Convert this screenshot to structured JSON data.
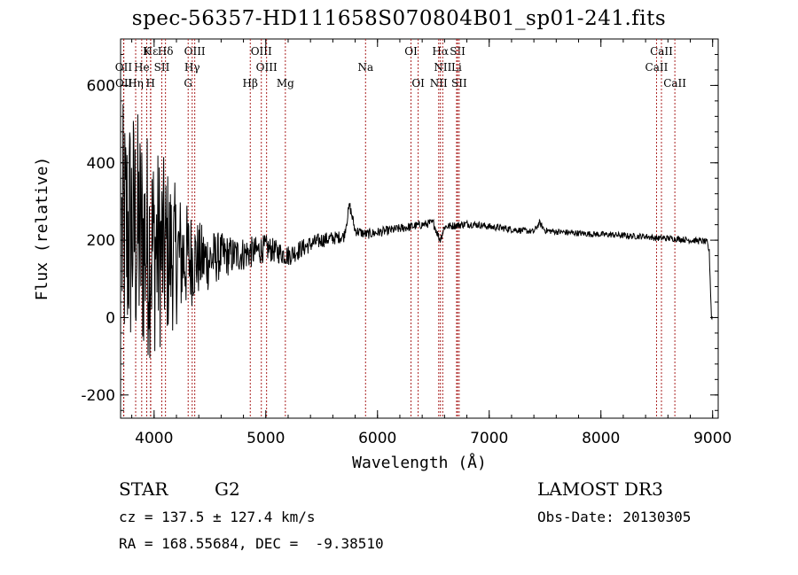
{
  "chart_data": {
    "type": "line",
    "title": "spec-56357-HD111658S070804B01_sp01-241.fits",
    "xlabel": "Wavelength (Å)",
    "ylabel": "Flux (relative)",
    "xlim": [
      3700,
      9050
    ],
    "ylim": [
      -260,
      720
    ],
    "xticks": [
      4000,
      5000,
      6000,
      7000,
      8000,
      9000
    ],
    "yticks": [
      -200,
      0,
      200,
      400,
      600
    ],
    "grid": false,
    "series": [
      {
        "name": "flux",
        "x": [
          3700,
          3800,
          3900,
          4000,
          4100,
          4200,
          4300,
          4400,
          4500,
          4600,
          4700,
          4800,
          4900,
          5000,
          5100,
          5200,
          5300,
          5400,
          5500,
          5600,
          5700,
          5750,
          5800,
          5900,
          6000,
          6100,
          6200,
          6300,
          6400,
          6500,
          6560,
          6600,
          6700,
          6800,
          6900,
          7000,
          7100,
          7200,
          7300,
          7400,
          7450,
          7500,
          7600,
          7700,
          7800,
          7900,
          8000,
          8100,
          8200,
          8300,
          8400,
          8500,
          8600,
          8700,
          8800,
          8900,
          8950,
          8970,
          8990,
          9000
        ],
        "values": [
          200,
          230,
          200,
          180,
          170,
          160,
          155,
          150,
          150,
          160,
          160,
          165,
          170,
          180,
          170,
          160,
          175,
          190,
          200,
          205,
          210,
          290,
          225,
          215,
          220,
          225,
          230,
          235,
          240,
          245,
          200,
          235,
          238,
          242,
          240,
          235,
          232,
          228,
          225,
          222,
          245,
          225,
          222,
          220,
          218,
          216,
          215,
          214,
          212,
          210,
          210,
          205,
          205,
          203,
          200,
          198,
          195,
          170,
          0,
          0
        ],
        "noise": [
          350,
          340,
          320,
          280,
          240,
          180,
          140,
          100,
          80,
          60,
          50,
          45,
          40,
          35,
          30,
          28,
          25,
          22,
          20,
          18,
          15,
          15,
          14,
          13,
          13,
          12,
          12,
          12,
          11,
          11,
          11,
          10,
          10,
          10,
          9,
          9,
          9,
          9,
          8,
          8,
          8,
          8,
          8,
          8,
          8,
          8,
          8,
          8,
          8,
          8,
          8,
          8,
          8,
          8,
          8,
          8,
          8,
          8,
          8,
          8
        ]
      }
    ],
    "lines": [
      {
        "label": "Hε",
        "wave": 3970,
        "row": 0
      },
      {
        "label": "K",
        "wave": 3934,
        "row": 0
      },
      {
        "label": "Hδ",
        "wave": 4102,
        "row": 0
      },
      {
        "label": "OIII",
        "wave": 4364,
        "row": 0
      },
      {
        "label": "OIII",
        "wave": 4960,
        "row": 0
      },
      {
        "label": "OI",
        "wave": 6300,
        "row": 0
      },
      {
        "label": "Hα",
        "wave": 6563,
        "row": 0
      },
      {
        "label": "SII",
        "wave": 6717,
        "row": 0
      },
      {
        "label": "CaII",
        "wave": 8542,
        "row": 0
      },
      {
        "label": "OII",
        "wave": 3727,
        "row": 1
      },
      {
        "label": "He",
        "wave": 3889,
        "row": 1
      },
      {
        "label": "SII",
        "wave": 4069,
        "row": 1
      },
      {
        "label": "Hγ",
        "wave": 4341,
        "row": 1
      },
      {
        "label": "OIII",
        "wave": 5007,
        "row": 1
      },
      {
        "label": "Na",
        "wave": 5893,
        "row": 1
      },
      {
        "label": "NII",
        "wave": 6584,
        "row": 1
      },
      {
        "label": "Li",
        "wave": 6708,
        "row": 1
      },
      {
        "label": "CaII",
        "wave": 8498,
        "row": 1
      },
      {
        "label": "OII",
        "wave": 3729,
        "row": 2
      },
      {
        "label": "Hη",
        "wave": 3835,
        "row": 2
      },
      {
        "label": "H",
        "wave": 3968,
        "row": 2
      },
      {
        "label": "G",
        "wave": 4305,
        "row": 2
      },
      {
        "label": "Hβ",
        "wave": 4861,
        "row": 2
      },
      {
        "label": "Mg",
        "wave": 5175,
        "row": 2
      },
      {
        "label": "OI",
        "wave": 6364,
        "row": 2
      },
      {
        "label": "NII",
        "wave": 6548,
        "row": 2
      },
      {
        "label": "SII",
        "wave": 6731,
        "row": 2
      },
      {
        "label": "CaII",
        "wave": 8662,
        "row": 2
      }
    ],
    "line_color": "#aa2222"
  },
  "info": {
    "class": "STAR",
    "subclass": "G2",
    "survey": "LAMOST DR3",
    "cz": "cz = 137.5 ± 127.4 km/s",
    "obsdate": "Obs-Date: 20130305",
    "radec": "RA = 168.55684, DEC =  -9.38510"
  }
}
